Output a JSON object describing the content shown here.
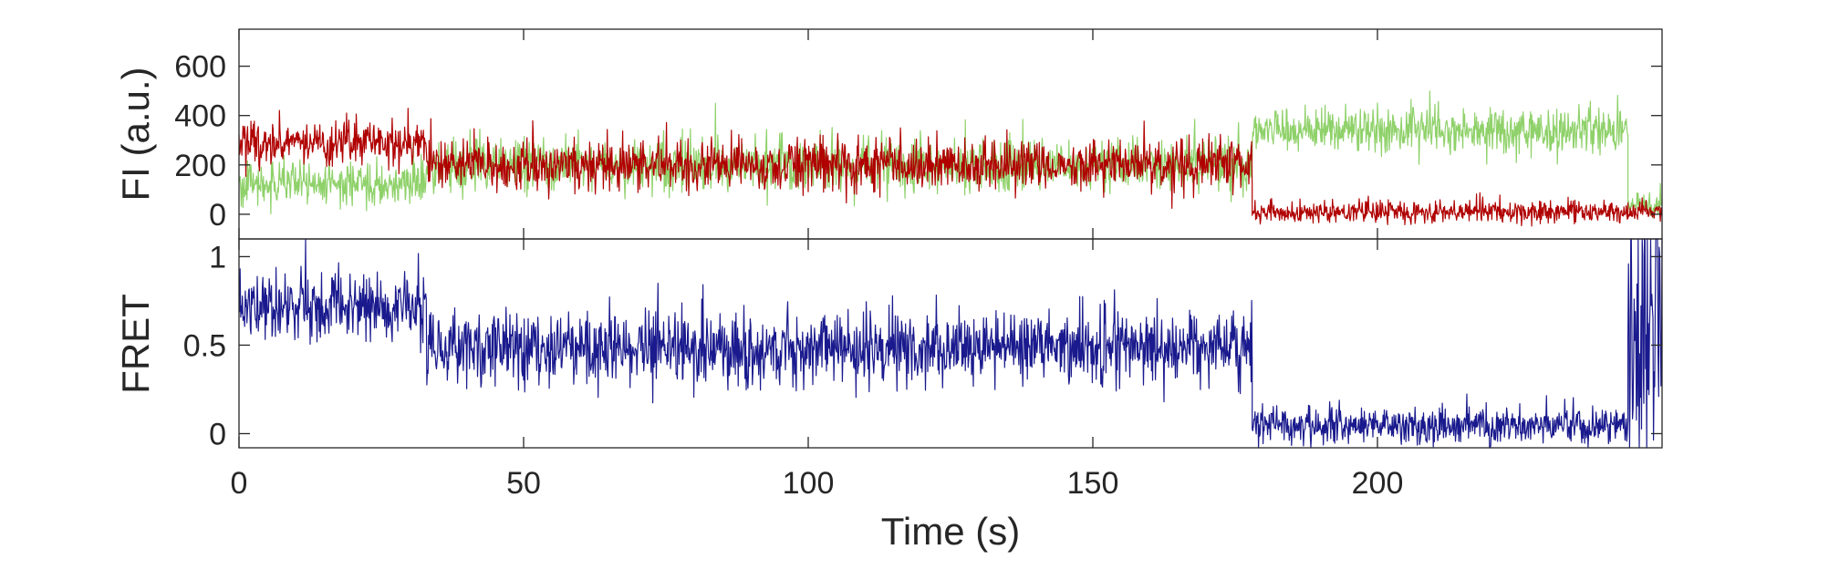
{
  "chart_data": [
    {
      "type": "line",
      "ylabel": "FI (a.u.)",
      "xlim": [
        0,
        250
      ],
      "ylim": [
        -100,
        750
      ],
      "yticks": [
        0,
        200,
        400,
        600
      ],
      "yticklabels": [
        "0",
        "200",
        "400",
        "600"
      ],
      "series": [
        {
          "color": "#8fd16a",
          "segments": [
            {
              "x0": 0,
              "x1": 33,
              "mean": 120,
              "noise": 55
            },
            {
              "x0": 33,
              "x1": 178,
              "mean": 200,
              "noise": 70
            },
            {
              "x0": 178,
              "x1": 244,
              "mean": 340,
              "noise": 60
            },
            {
              "x0": 244,
              "x1": 250,
              "mean": 40,
              "noise": 30
            }
          ]
        },
        {
          "color": "#b00000",
          "segments": [
            {
              "x0": 0,
              "x1": 33,
              "mean": 290,
              "noise": 55
            },
            {
              "x0": 33,
              "x1": 178,
              "mean": 200,
              "noise": 65
            },
            {
              "x0": 178,
              "x1": 244,
              "mean": 10,
              "noise": 30
            },
            {
              "x0": 244,
              "x1": 250,
              "mean": 10,
              "noise": 25
            }
          ]
        }
      ]
    },
    {
      "type": "line",
      "xlabel": "Time (s)",
      "ylabel": "FRET",
      "xlim": [
        0,
        250
      ],
      "ylim": [
        -0.08,
        1.1
      ],
      "xticks": [
        0,
        50,
        100,
        150,
        200
      ],
      "xticklabels": [
        "0",
        "50",
        "100",
        "150",
        "200"
      ],
      "yticks": [
        0,
        0.5,
        1
      ],
      "yticklabels": [
        "0",
        "0.5",
        "1"
      ],
      "series": [
        {
          "color": "#1a1a8e",
          "segments": [
            {
              "x0": 0,
              "x1": 33,
              "mean": 0.72,
              "noise": 0.12
            },
            {
              "x0": 33,
              "x1": 178,
              "mean": 0.48,
              "noise": 0.13
            },
            {
              "x0": 178,
              "x1": 244,
              "mean": 0.05,
              "noise": 0.07
            },
            {
              "x0": 244,
              "x1": 250,
              "mean": 0.6,
              "noise": 0.55
            }
          ]
        }
      ]
    }
  ]
}
